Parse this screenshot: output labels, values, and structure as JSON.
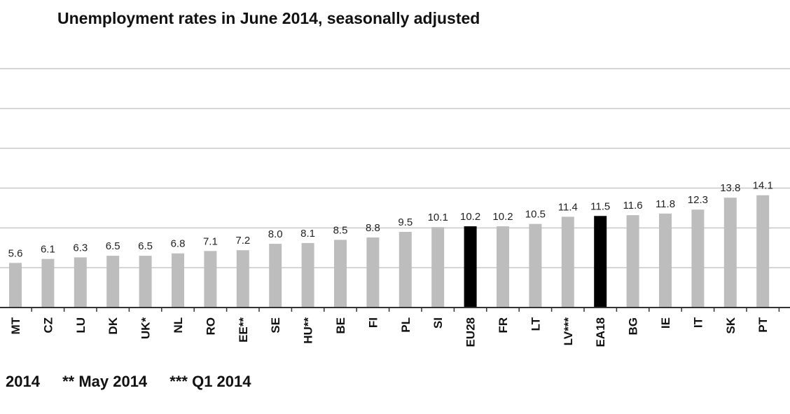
{
  "chart_data": {
    "type": "bar",
    "title": "Unemployment rates in June 2014, seasonally adjusted",
    "xlabel": "",
    "ylabel": "",
    "ylim": [
      0,
      30
    ],
    "grid": true,
    "categories": [
      "MT",
      "CZ",
      "LU",
      "DK",
      "UK*",
      "NL",
      "RO",
      "EE**",
      "SE",
      "HU**",
      "BE",
      "FI",
      "PL",
      "SI",
      "EU28",
      "FR",
      "LT",
      "LV***",
      "EA18",
      "BG",
      "IE",
      "IT",
      "SK",
      "PT"
    ],
    "values": [
      5.6,
      6.1,
      6.3,
      6.5,
      6.5,
      6.8,
      7.1,
      7.2,
      8.0,
      8.1,
      8.5,
      8.8,
      9.5,
      10.1,
      10.2,
      10.2,
      10.5,
      11.4,
      11.5,
      11.6,
      11.8,
      12.3,
      13.8,
      14.1
    ],
    "highlight": [
      "EU28",
      "EA18"
    ],
    "colors": {
      "bar": "#bdbdbd",
      "highlight": "#000000",
      "grid": "#c8c8c8"
    }
  },
  "footnotes": [
    "2014",
    "** May 2014",
    "*** Q1 2014"
  ]
}
